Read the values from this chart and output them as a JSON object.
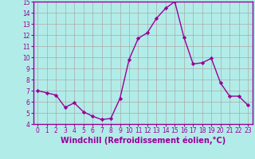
{
  "x": [
    0,
    1,
    2,
    3,
    4,
    5,
    6,
    7,
    8,
    9,
    10,
    11,
    12,
    13,
    14,
    15,
    16,
    17,
    18,
    19,
    20,
    21,
    22,
    23
  ],
  "y": [
    7.0,
    6.8,
    6.6,
    5.5,
    5.9,
    5.1,
    4.7,
    4.4,
    4.5,
    6.3,
    9.8,
    11.7,
    12.2,
    13.5,
    14.4,
    15.0,
    11.8,
    9.4,
    9.5,
    9.9,
    7.7,
    6.5,
    6.5,
    5.7
  ],
  "line_color": "#990099",
  "marker": "D",
  "marker_size": 2.2,
  "line_width": 1.0,
  "bg_color": "#b2ece8",
  "grid_color": "#aaaaaa",
  "xlabel": "Windchill (Refroidissement éolien,°C)",
  "xlabel_color": "#990099",
  "tick_color": "#990099",
  "ylim": [
    4,
    15
  ],
  "xlim": [
    -0.5,
    23.5
  ],
  "yticks": [
    4,
    5,
    6,
    7,
    8,
    9,
    10,
    11,
    12,
    13,
    14,
    15
  ],
  "xticks": [
    0,
    1,
    2,
    3,
    4,
    5,
    6,
    7,
    8,
    9,
    10,
    11,
    12,
    13,
    14,
    15,
    16,
    17,
    18,
    19,
    20,
    21,
    22,
    23
  ],
  "tick_fontsize": 5.5,
  "xlabel_fontsize": 7.0,
  "spine_color": "#990099"
}
